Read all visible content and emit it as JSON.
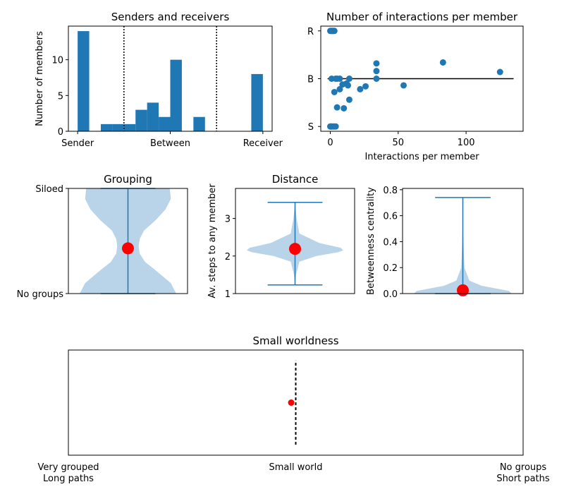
{
  "colors": {
    "blue": "#1f77b4",
    "violin": "#b9d3e8",
    "red": "#ff0000"
  },
  "chart_data": [
    {
      "id": "senders",
      "type": "bar",
      "title": "Senders and receivers",
      "ylabel": "Number of members",
      "xlim": [
        -0.05,
        1.05
      ],
      "ylim": [
        0,
        14.7
      ],
      "yticks": [
        0,
        5,
        10
      ],
      "xticks": [
        {
          "value": 0,
          "label": "Sender"
        },
        {
          "value": 0.5,
          "label": "Between"
        },
        {
          "value": 1,
          "label": "Receiver"
        }
      ],
      "bin_width": 0.0625,
      "bins": [
        {
          "start": 0,
          "value": 14
        },
        {
          "start": 0.0625,
          "value": 0
        },
        {
          "start": 0.125,
          "value": 1
        },
        {
          "start": 0.1875,
          "value": 1
        },
        {
          "start": 0.25,
          "value": 1
        },
        {
          "start": 0.3125,
          "value": 3
        },
        {
          "start": 0.375,
          "value": 4
        },
        {
          "start": 0.4375,
          "value": 2
        },
        {
          "start": 0.5,
          "value": 10
        },
        {
          "start": 0.5625,
          "value": 0
        },
        {
          "start": 0.625,
          "value": 2
        },
        {
          "start": 0.6875,
          "value": 0
        },
        {
          "start": 0.75,
          "value": 0
        },
        {
          "start": 0.8125,
          "value": 0
        },
        {
          "start": 0.875,
          "value": 0
        },
        {
          "start": 0.9375,
          "value": 8
        }
      ],
      "vlines": [
        0.25,
        0.75
      ]
    },
    {
      "id": "interactions",
      "type": "scatter",
      "title": "Number of interactions per member",
      "xlabel": "Interactions per member",
      "xlim": [
        -7,
        142
      ],
      "ylim": [
        -0.05,
        1.05
      ],
      "xticks": [
        0,
        50,
        100
      ],
      "yticks": [
        {
          "value": 0,
          "label": "S"
        },
        {
          "value": 0.5,
          "label": "B"
        },
        {
          "value": 1,
          "label": "R"
        }
      ],
      "hline": {
        "y": 0.5,
        "x": [
          -2,
          135
        ]
      },
      "points": [
        [
          0,
          1
        ],
        [
          1,
          1
        ],
        [
          2,
          1
        ],
        [
          3,
          1
        ],
        [
          1,
          1
        ],
        [
          2,
          1
        ],
        [
          1,
          0.5
        ],
        [
          4,
          0.5
        ],
        [
          5,
          0.5
        ],
        [
          7,
          0.5
        ],
        [
          14,
          0.5
        ],
        [
          34,
          0.5
        ],
        [
          34,
          0.58
        ],
        [
          34,
          0.66
        ],
        [
          83,
          0.67
        ],
        [
          125,
          0.57
        ],
        [
          3,
          0.36
        ],
        [
          5,
          0.2
        ],
        [
          7,
          0.39
        ],
        [
          9,
          0.44
        ],
        [
          10,
          0.19
        ],
        [
          12,
          0.45
        ],
        [
          13,
          0.43
        ],
        [
          14,
          0.28
        ],
        [
          22,
          0.39
        ],
        [
          26,
          0.42
        ],
        [
          54,
          0.43
        ],
        [
          0,
          0
        ],
        [
          1,
          0
        ],
        [
          2,
          0
        ],
        [
          3,
          0
        ],
        [
          4,
          0
        ],
        [
          0.5,
          0
        ]
      ]
    },
    {
      "id": "grouping",
      "type": "violin",
      "title": "Grouping",
      "ylim": [
        0,
        1
      ],
      "yticks": [
        {
          "value": 0,
          "label": "No groups"
        },
        {
          "value": 1,
          "label": "Siloed"
        }
      ],
      "extrema": [
        0,
        1
      ],
      "mean": 0.43,
      "half_width": 0.9,
      "profile": [
        [
          0,
          0.9
        ],
        [
          0.1,
          0.8
        ],
        [
          0.22,
          0.52
        ],
        [
          0.3,
          0.32
        ],
        [
          0.38,
          0.22
        ],
        [
          0.45,
          0.2
        ],
        [
          0.52,
          0.22
        ],
        [
          0.6,
          0.3
        ],
        [
          0.7,
          0.52
        ],
        [
          0.8,
          0.7
        ],
        [
          0.9,
          0.8
        ],
        [
          1,
          0.78
        ]
      ]
    },
    {
      "id": "distance",
      "type": "violin",
      "title": "Distance",
      "ylabel": "Av. steps to any member",
      "ylim": [
        1,
        3.8
      ],
      "yticks": [
        1,
        2,
        3
      ],
      "extrema": [
        1.23,
        3.43
      ],
      "mean": 2.19,
      "half_width": 0.9,
      "profile": [
        [
          1.23,
          0
        ],
        [
          1.5,
          0.02
        ],
        [
          1.85,
          0.08
        ],
        [
          2.0,
          0.4
        ],
        [
          2.1,
          0.8
        ],
        [
          2.15,
          0.9
        ],
        [
          2.22,
          0.85
        ],
        [
          2.35,
          0.45
        ],
        [
          2.6,
          0.08
        ],
        [
          3.0,
          0.03
        ],
        [
          3.43,
          0
        ]
      ]
    },
    {
      "id": "betweenness",
      "type": "violin",
      "ylabel": "Betweenness centrality",
      "ylim": [
        0,
        0.81
      ],
      "yticks": [
        0,
        0.2,
        0.4,
        0.6,
        0.8
      ],
      "extrema": [
        0,
        0.74
      ],
      "mean": 0.025,
      "half_width": 0.9,
      "profile": [
        [
          0,
          0.9
        ],
        [
          0.02,
          0.85
        ],
        [
          0.04,
          0.6
        ],
        [
          0.06,
          0.35
        ],
        [
          0.1,
          0.12
        ],
        [
          0.2,
          0.03
        ],
        [
          0.35,
          0.015
        ],
        [
          0.5,
          0.005
        ],
        [
          0.74,
          0
        ]
      ]
    },
    {
      "id": "smallworld",
      "type": "scatter",
      "title": "Small worldness",
      "xlim": [
        -1,
        1
      ],
      "ylim": [
        -1,
        1
      ],
      "xticks": [
        {
          "value": -1,
          "label": "Very grouped",
          "label2": "Long paths"
        },
        {
          "value": 0,
          "label": "Small world",
          "label2": ""
        },
        {
          "value": 1,
          "label": "No groups",
          "label2": "Short paths"
        }
      ],
      "vline": {
        "x": 0,
        "y": [
          -0.8,
          0.8
        ]
      },
      "points": [
        [
          -0.02,
          0
        ]
      ]
    }
  ]
}
